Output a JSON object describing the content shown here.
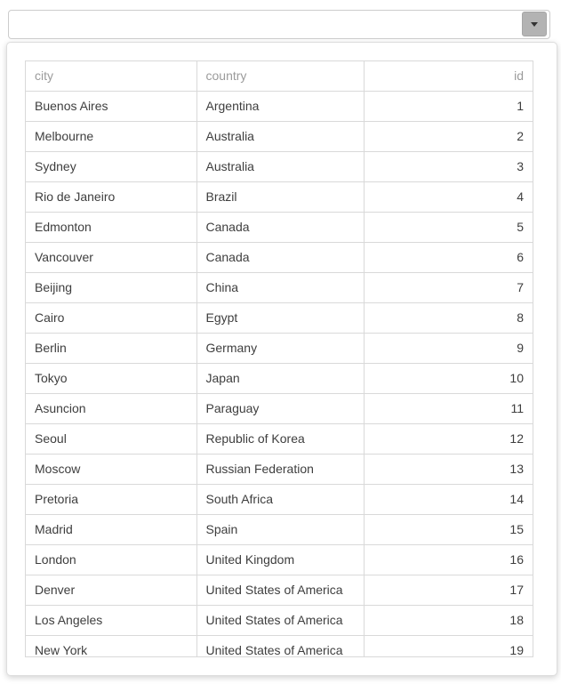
{
  "combobox": {
    "input_value": "",
    "input_placeholder": "",
    "button_icon": "caret-down-icon"
  },
  "table": {
    "columns": [
      {
        "key": "city",
        "label": "city",
        "align": "left"
      },
      {
        "key": "country",
        "label": "country",
        "align": "left"
      },
      {
        "key": "id",
        "label": "id",
        "align": "right"
      }
    ],
    "rows": [
      {
        "city": "Buenos Aires",
        "country": "Argentina",
        "id": 1
      },
      {
        "city": "Melbourne",
        "country": "Australia",
        "id": 2
      },
      {
        "city": "Sydney",
        "country": "Australia",
        "id": 3
      },
      {
        "city": "Rio de Janeiro",
        "country": "Brazil",
        "id": 4
      },
      {
        "city": "Edmonton",
        "country": "Canada",
        "id": 5
      },
      {
        "city": "Vancouver",
        "country": "Canada",
        "id": 6
      },
      {
        "city": "Beijing",
        "country": "China",
        "id": 7
      },
      {
        "city": "Cairo",
        "country": "Egypt",
        "id": 8
      },
      {
        "city": "Berlin",
        "country": "Germany",
        "id": 9
      },
      {
        "city": "Tokyo",
        "country": "Japan",
        "id": 10
      },
      {
        "city": "Asuncion",
        "country": "Paraguay",
        "id": 11
      },
      {
        "city": "Seoul",
        "country": "Republic of Korea",
        "id": 12
      },
      {
        "city": "Moscow",
        "country": "Russian Federation",
        "id": 13
      },
      {
        "city": "Pretoria",
        "country": "South Africa",
        "id": 14
      },
      {
        "city": "Madrid",
        "country": "Spain",
        "id": 15
      },
      {
        "city": "London",
        "country": "United Kingdom",
        "id": 16
      },
      {
        "city": "Denver",
        "country": "United States of America",
        "id": 17
      },
      {
        "city": "Los Angeles",
        "country": "United States of America",
        "id": 18
      },
      {
        "city": "New York",
        "country": "United States of America",
        "id": 19
      }
    ]
  },
  "colors": {
    "input_border": "#cccccc",
    "button_background": "#b3b3b3",
    "button_border": "#a6a6a6",
    "caret": "#333333",
    "panel_border": "#dddddd",
    "grid_border": "#d9d9d9",
    "header_text": "#9b9b9b",
    "cell_text": "#3e3e3e"
  }
}
